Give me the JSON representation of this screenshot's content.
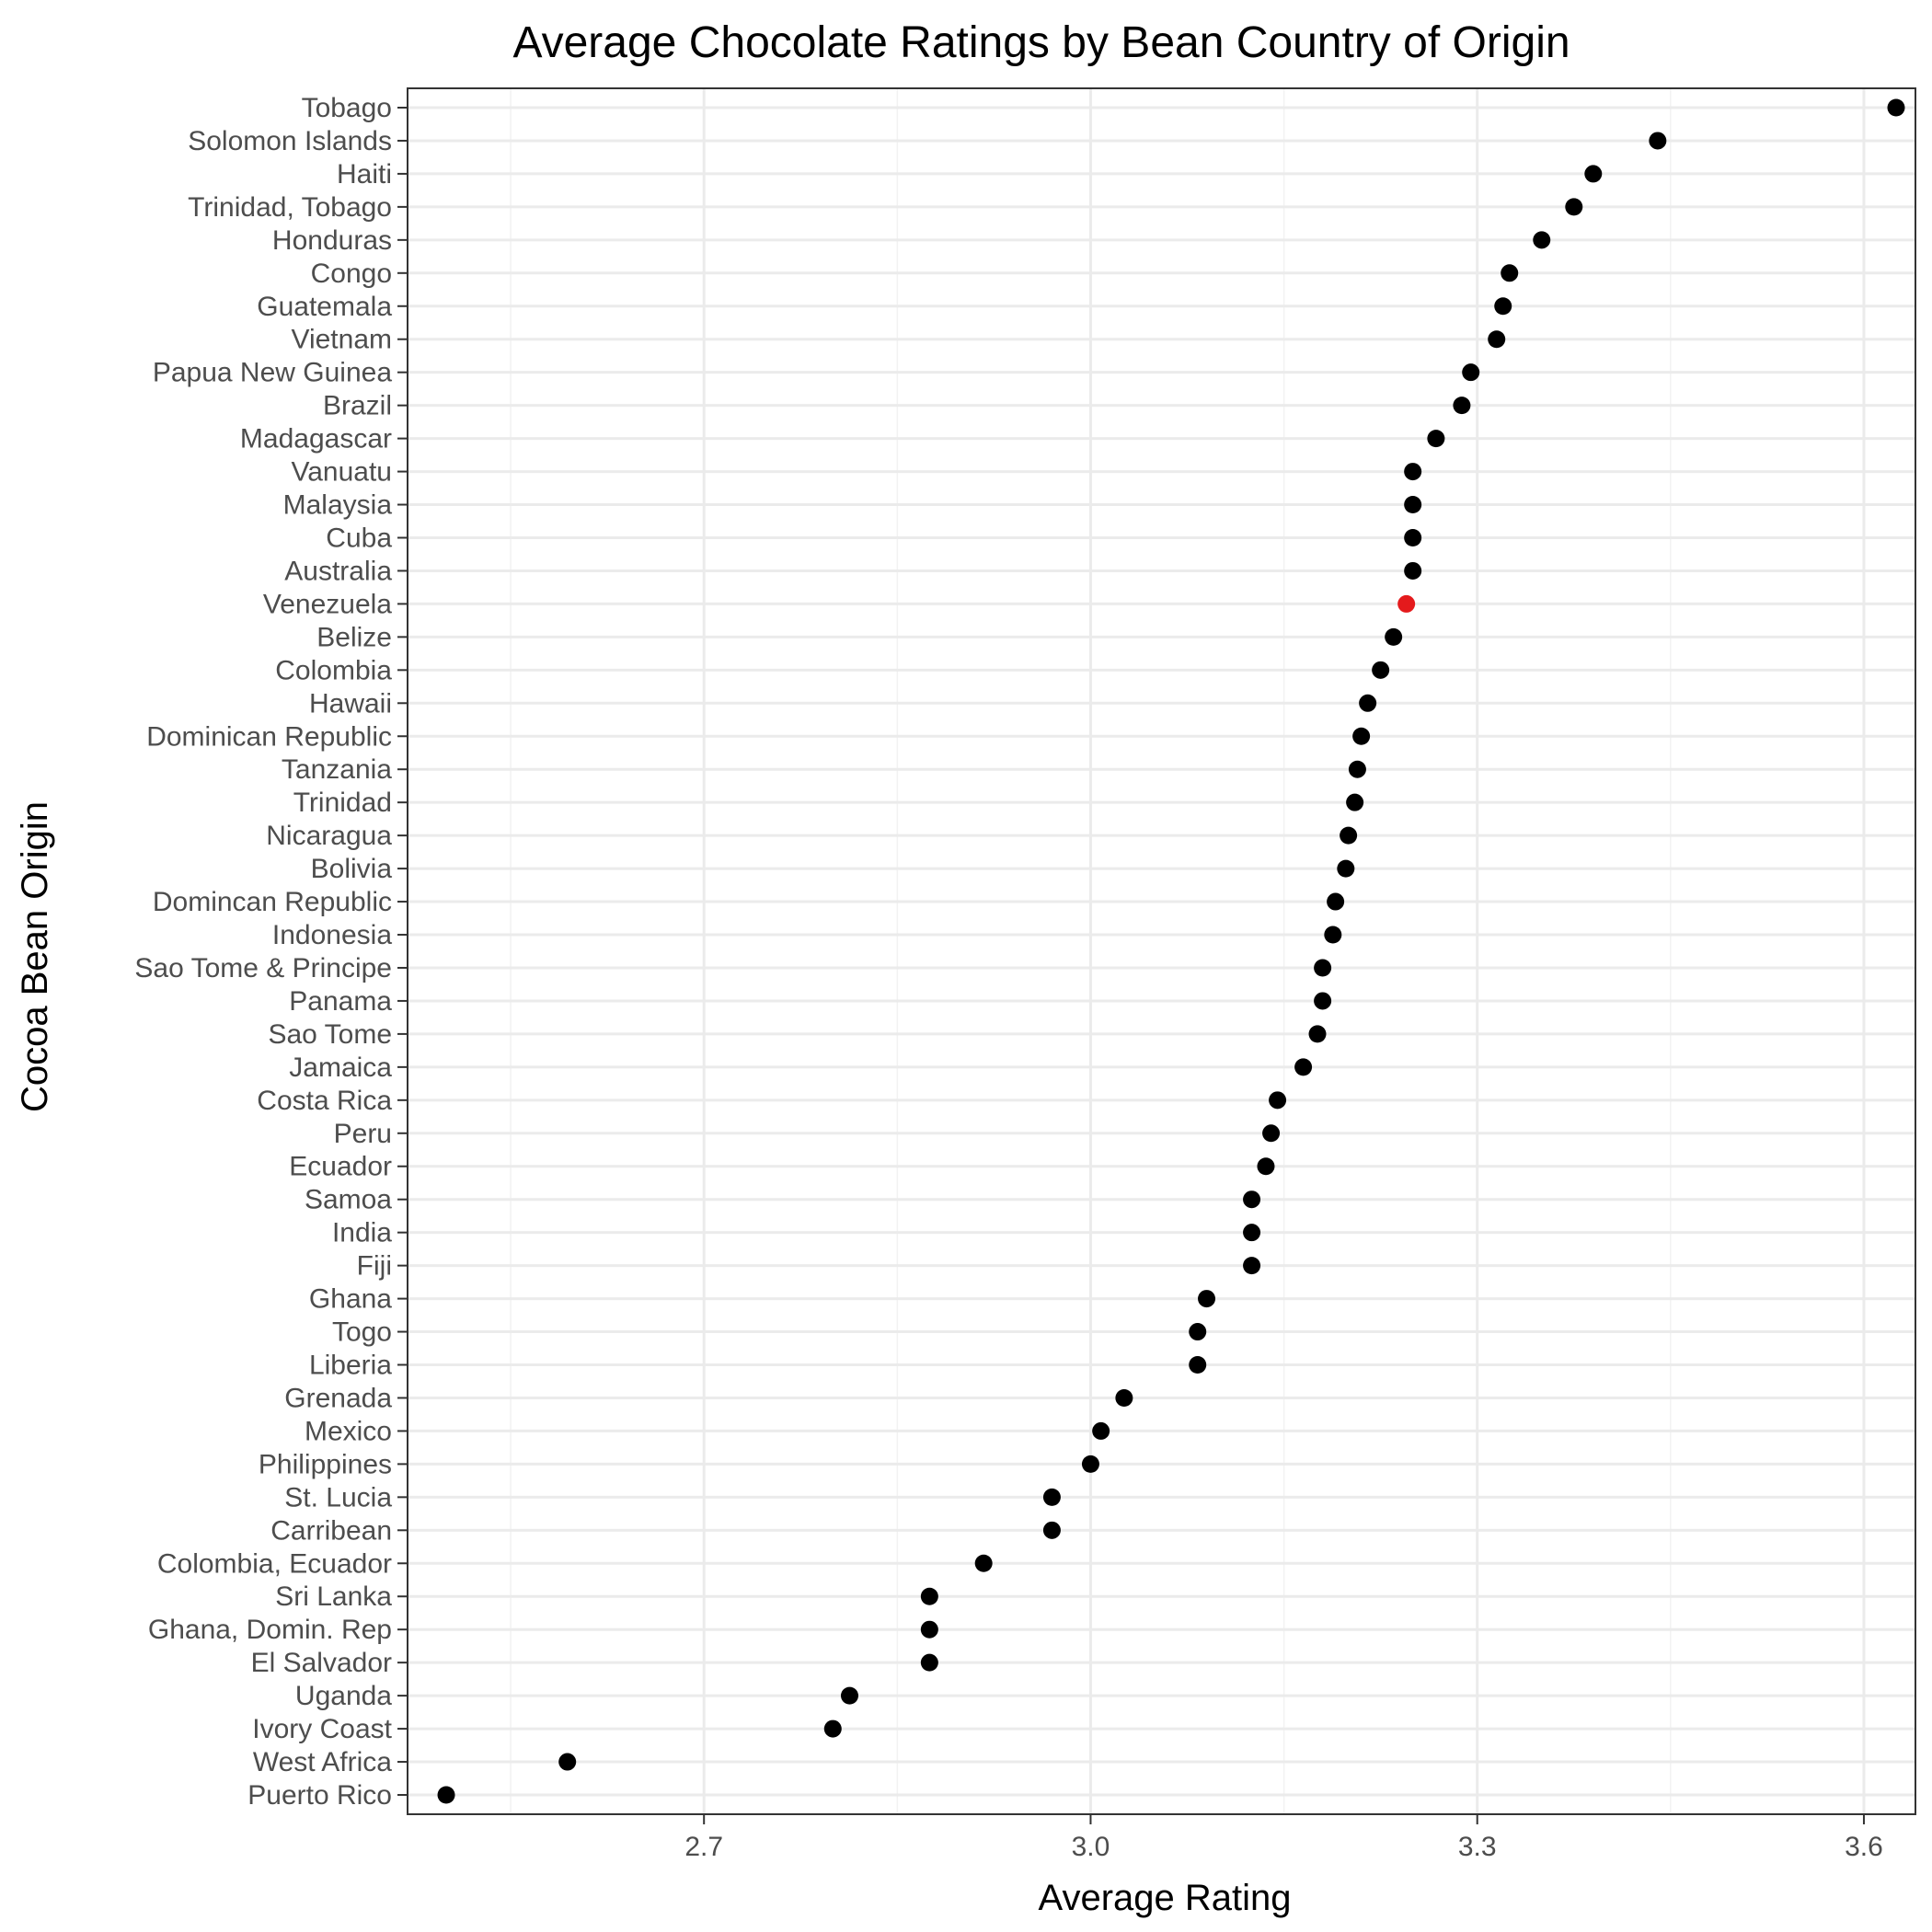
{
  "chart_data": {
    "type": "scatter",
    "title": "Average Chocolate Ratings by Bean Country of Origin",
    "xlabel": "Average Rating",
    "ylabel": "Cocoa Bean Origin",
    "xlim": [
      2.47,
      3.64
    ],
    "x_ticks": [
      2.7,
      3.0,
      3.3,
      3.6
    ],
    "x_tick_labels": [
      "2.7",
      "3.0",
      "3.3",
      "3.6"
    ],
    "grid": true,
    "point_color": "#000000",
    "highlight_color": "#e41a1c",
    "highlight_category": "Venezuela",
    "categories": [
      "Tobago",
      "Solomon Islands",
      "Haiti",
      "Trinidad, Tobago",
      "Honduras",
      "Congo",
      "Guatemala",
      "Vietnam",
      "Papua New Guinea",
      "Brazil",
      "Madagascar",
      "Vanuatu",
      "Malaysia",
      "Cuba",
      "Australia",
      "Venezuela",
      "Belize",
      "Colombia",
      "Hawaii",
      "Dominican Republic",
      "Tanzania",
      "Trinidad",
      "Nicaragua",
      "Bolivia",
      "Domincan Republic",
      "Indonesia",
      "Sao Tome & Principe",
      "Panama",
      "Sao Tome",
      "Jamaica",
      "Costa Rica",
      "Peru",
      "Ecuador",
      "Samoa",
      "India",
      "Fiji",
      "Ghana",
      "Togo",
      "Liberia",
      "Grenada",
      "Mexico",
      "Philippines",
      "St. Lucia",
      "Carribean",
      "Colombia, Ecuador",
      "Sri Lanka",
      "Ghana, Domin. Rep",
      "El Salvador",
      "Uganda",
      "Ivory Coast",
      "West Africa",
      "Puerto Rico"
    ],
    "values": [
      3.625,
      3.44,
      3.39,
      3.375,
      3.35,
      3.325,
      3.32,
      3.315,
      3.295,
      3.288,
      3.268,
      3.25,
      3.25,
      3.25,
      3.25,
      3.245,
      3.235,
      3.225,
      3.215,
      3.21,
      3.207,
      3.205,
      3.2,
      3.198,
      3.19,
      3.188,
      3.18,
      3.18,
      3.176,
      3.165,
      3.145,
      3.14,
      3.136,
      3.125,
      3.125,
      3.125,
      3.09,
      3.083,
      3.083,
      3.026,
      3.008,
      3.0,
      2.97,
      2.97,
      2.917,
      2.875,
      2.875,
      2.875,
      2.813,
      2.8,
      2.594,
      2.5
    ]
  }
}
